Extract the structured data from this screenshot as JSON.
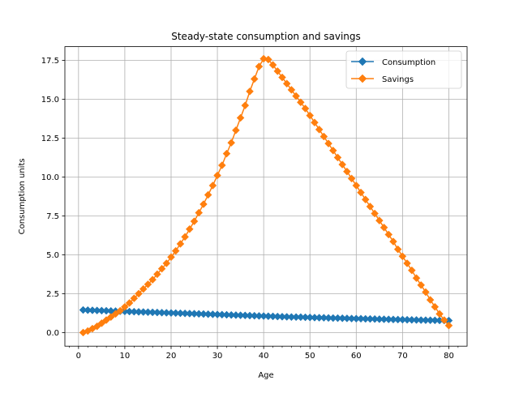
{
  "chart_data": {
    "type": "line",
    "title": "Steady-state consumption and savings",
    "xlabel": "Age",
    "ylabel": "Consumption units",
    "xlim": [
      -2.95,
      83.95
    ],
    "ylim": [
      -0.875,
      18.375
    ],
    "x_ticks": [
      0,
      10,
      20,
      30,
      40,
      50,
      60,
      70,
      80
    ],
    "x_tick_labels": [
      "0",
      "10",
      "20",
      "30",
      "40",
      "50",
      "60",
      "70",
      "80"
    ],
    "x_minor_step": 2,
    "y_ticks": [
      0.0,
      2.5,
      5.0,
      7.5,
      10.0,
      12.5,
      15.0,
      17.5
    ],
    "y_tick_labels": [
      "0.0",
      "2.5",
      "5.0",
      "7.5",
      "10.0",
      "12.5",
      "15.0",
      "17.5"
    ],
    "grid": true,
    "legend_position": "top-right",
    "x": [
      1,
      2,
      3,
      4,
      5,
      6,
      7,
      8,
      9,
      10,
      11,
      12,
      13,
      14,
      15,
      16,
      17,
      18,
      19,
      20,
      21,
      22,
      23,
      24,
      25,
      26,
      27,
      28,
      29,
      30,
      31,
      32,
      33,
      34,
      35,
      36,
      37,
      38,
      39,
      40,
      41,
      42,
      43,
      44,
      45,
      46,
      47,
      48,
      49,
      50,
      51,
      52,
      53,
      54,
      55,
      56,
      57,
      58,
      59,
      60,
      61,
      62,
      63,
      64,
      65,
      66,
      67,
      68,
      69,
      70,
      71,
      72,
      73,
      74,
      75,
      76,
      77,
      78,
      79,
      80
    ],
    "series": [
      {
        "name": "Consumption",
        "color": "#1f77b4",
        "marker": "diamond",
        "values": [
          1.45,
          1.44,
          1.43,
          1.42,
          1.41,
          1.4,
          1.39,
          1.38,
          1.37,
          1.36,
          1.35,
          1.34,
          1.33,
          1.32,
          1.31,
          1.3,
          1.29,
          1.28,
          1.27,
          1.26,
          1.25,
          1.24,
          1.23,
          1.22,
          1.21,
          1.2,
          1.19,
          1.18,
          1.17,
          1.16,
          1.15,
          1.14,
          1.13,
          1.12,
          1.11,
          1.1,
          1.09,
          1.08,
          1.07,
          1.06,
          1.05,
          1.04,
          1.03,
          1.02,
          1.01,
          1.0,
          0.995,
          0.99,
          0.98,
          0.97,
          0.96,
          0.955,
          0.95,
          0.94,
          0.93,
          0.925,
          0.92,
          0.91,
          0.9,
          0.895,
          0.89,
          0.88,
          0.875,
          0.87,
          0.86,
          0.855,
          0.85,
          0.84,
          0.835,
          0.83,
          0.82,
          0.815,
          0.81,
          0.8,
          0.795,
          0.79,
          0.785,
          0.78,
          0.775,
          0.77
        ]
      },
      {
        "name": "Savings",
        "color": "#ff7f0e",
        "marker": "diamond",
        "values": [
          0.0,
          0.1,
          0.25,
          0.4,
          0.6,
          0.8,
          1.0,
          1.2,
          1.4,
          1.65,
          1.9,
          2.2,
          2.5,
          2.8,
          3.1,
          3.4,
          3.75,
          4.1,
          4.45,
          4.85,
          5.25,
          5.7,
          6.15,
          6.65,
          7.15,
          7.7,
          8.25,
          8.85,
          9.45,
          10.1,
          10.75,
          11.5,
          12.2,
          13.0,
          13.8,
          14.6,
          15.5,
          16.3,
          17.1,
          17.6,
          17.55,
          17.2,
          16.8,
          16.4,
          16.0,
          15.6,
          15.2,
          14.8,
          14.4,
          13.95,
          13.5,
          13.05,
          12.6,
          12.15,
          11.7,
          11.25,
          10.8,
          10.35,
          9.9,
          9.45,
          9.0,
          8.55,
          8.1,
          7.65,
          7.2,
          6.75,
          6.3,
          5.85,
          5.35,
          4.9,
          4.45,
          4.0,
          3.5,
          3.05,
          2.6,
          2.1,
          1.65,
          1.2,
          0.8,
          0.45
        ]
      }
    ]
  }
}
